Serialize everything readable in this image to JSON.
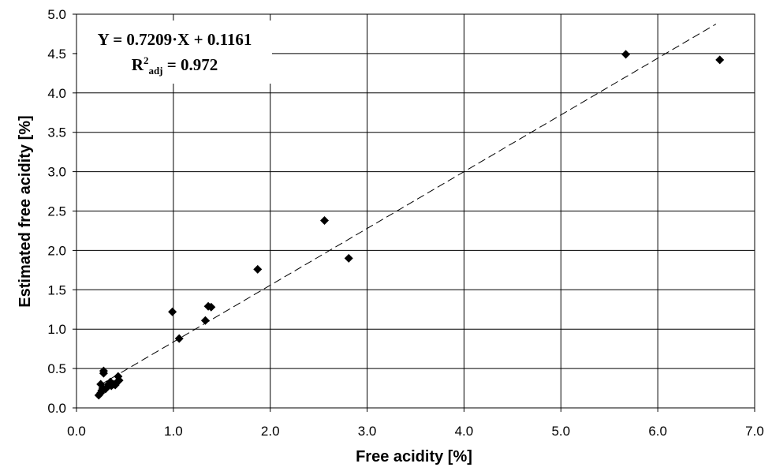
{
  "chart_data": {
    "type": "scatter",
    "xlabel": "Free acidity [%]",
    "ylabel": "Estimated free acidity [%]",
    "xlim": [
      0.0,
      7.0
    ],
    "ylim": [
      0.0,
      5.0
    ],
    "x_ticks": [
      "0.0",
      "1.0",
      "2.0",
      "3.0",
      "4.0",
      "5.0",
      "6.0",
      "7.0"
    ],
    "y_ticks": [
      "0.0",
      "0.5",
      "1.0",
      "1.5",
      "2.0",
      "2.5",
      "3.0",
      "3.5",
      "4.0",
      "4.5",
      "5.0"
    ],
    "grid": true,
    "marker": "diamond",
    "marker_color": "#000000",
    "series": [
      {
        "points": [
          [
            0.23,
            0.16
          ],
          [
            0.25,
            0.19
          ],
          [
            0.26,
            0.22
          ],
          [
            0.27,
            0.25
          ],
          [
            0.25,
            0.3
          ],
          [
            0.28,
            0.44
          ],
          [
            0.28,
            0.47
          ],
          [
            0.3,
            0.24
          ],
          [
            0.32,
            0.27
          ],
          [
            0.33,
            0.3
          ],
          [
            0.35,
            0.33
          ],
          [
            0.36,
            0.28
          ],
          [
            0.38,
            0.3
          ],
          [
            0.4,
            0.29
          ],
          [
            0.42,
            0.33
          ],
          [
            0.43,
            0.4
          ],
          [
            0.44,
            0.35
          ],
          [
            0.99,
            1.22
          ],
          [
            1.06,
            0.88
          ],
          [
            1.33,
            1.11
          ],
          [
            1.36,
            1.29
          ],
          [
            1.39,
            1.28
          ],
          [
            1.87,
            1.76
          ],
          [
            2.56,
            2.38
          ],
          [
            2.81,
            1.9
          ],
          [
            5.67,
            4.49
          ],
          [
            6.64,
            4.42
          ]
        ]
      }
    ],
    "trendline": {
      "slope": 0.7209,
      "intercept": 0.1161,
      "x_range": [
        0.25,
        6.6
      ],
      "style": "dashed"
    },
    "annotation": {
      "equation": "Y = 0.7209·X + 0.1161",
      "r2_base": "R",
      "r2_sup": "2",
      "r2_sub": "adj",
      "r2_value": " = 0.972"
    }
  }
}
